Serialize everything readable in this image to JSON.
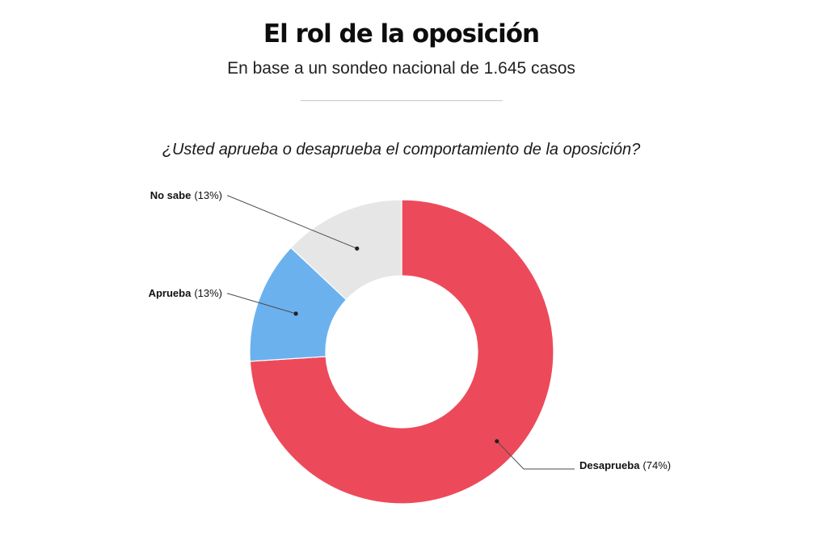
{
  "header": {
    "title": "El rol de la oposición",
    "subtitle": "En base a un sondeo nacional de 1.645 casos",
    "question": "¿Usted aprueba o desaprueba el comportamiento de la oposición?"
  },
  "chart_data": {
    "type": "pie",
    "donut": true,
    "labels": [
      "Desaprueba",
      "Aprueba",
      "No sabe"
    ],
    "values": [
      74,
      13,
      13
    ],
    "value_labels": [
      "(74%)",
      "(13%)",
      "(13%)"
    ],
    "colors": [
      "#EC4A5A",
      "#6BB1EE",
      "#E6E6E6"
    ],
    "unit": "%"
  }
}
